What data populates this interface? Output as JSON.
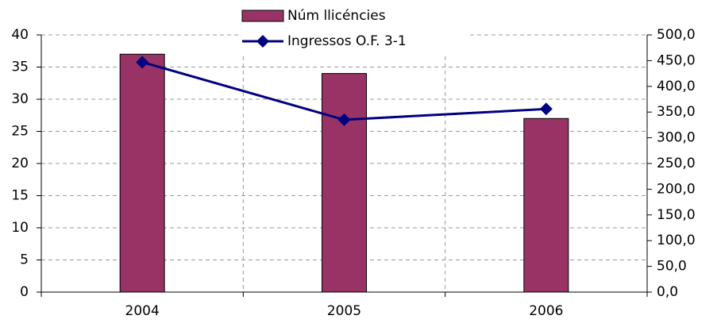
{
  "chart_data": {
    "type": "bar_line",
    "categories": [
      "2004",
      "2005",
      "2006"
    ],
    "series": [
      {
        "name": "Núm llicéncies",
        "type": "bar",
        "color": "#993366",
        "values": [
          37,
          34,
          27
        ]
      },
      {
        "name": "Ingressos O.F. 3-1",
        "type": "line",
        "color": "#000080",
        "axis": "y2",
        "values": [
          447,
          335,
          356
        ]
      }
    ],
    "ylim": [
      0,
      40
    ],
    "yticks": [
      0,
      5,
      10,
      15,
      20,
      25,
      30,
      35,
      40
    ],
    "y2lim": [
      0,
      500
    ],
    "y2ticks": [
      {
        "value": 0,
        "label": "0,0"
      },
      {
        "value": 50,
        "label": "50,0"
      },
      {
        "value": 100,
        "label": "100,0"
      },
      {
        "value": 150,
        "label": "150,0"
      },
      {
        "value": 200,
        "label": "200,0"
      },
      {
        "value": 250,
        "label": "250,0"
      },
      {
        "value": 300,
        "label": "300,0"
      },
      {
        "value": 350,
        "label": "350,0"
      },
      {
        "value": 400,
        "label": "400,0"
      },
      {
        "value": 450,
        "label": "450,0"
      },
      {
        "value": 500,
        "label": "500,0"
      }
    ],
    "grid": true,
    "legend": "top"
  }
}
